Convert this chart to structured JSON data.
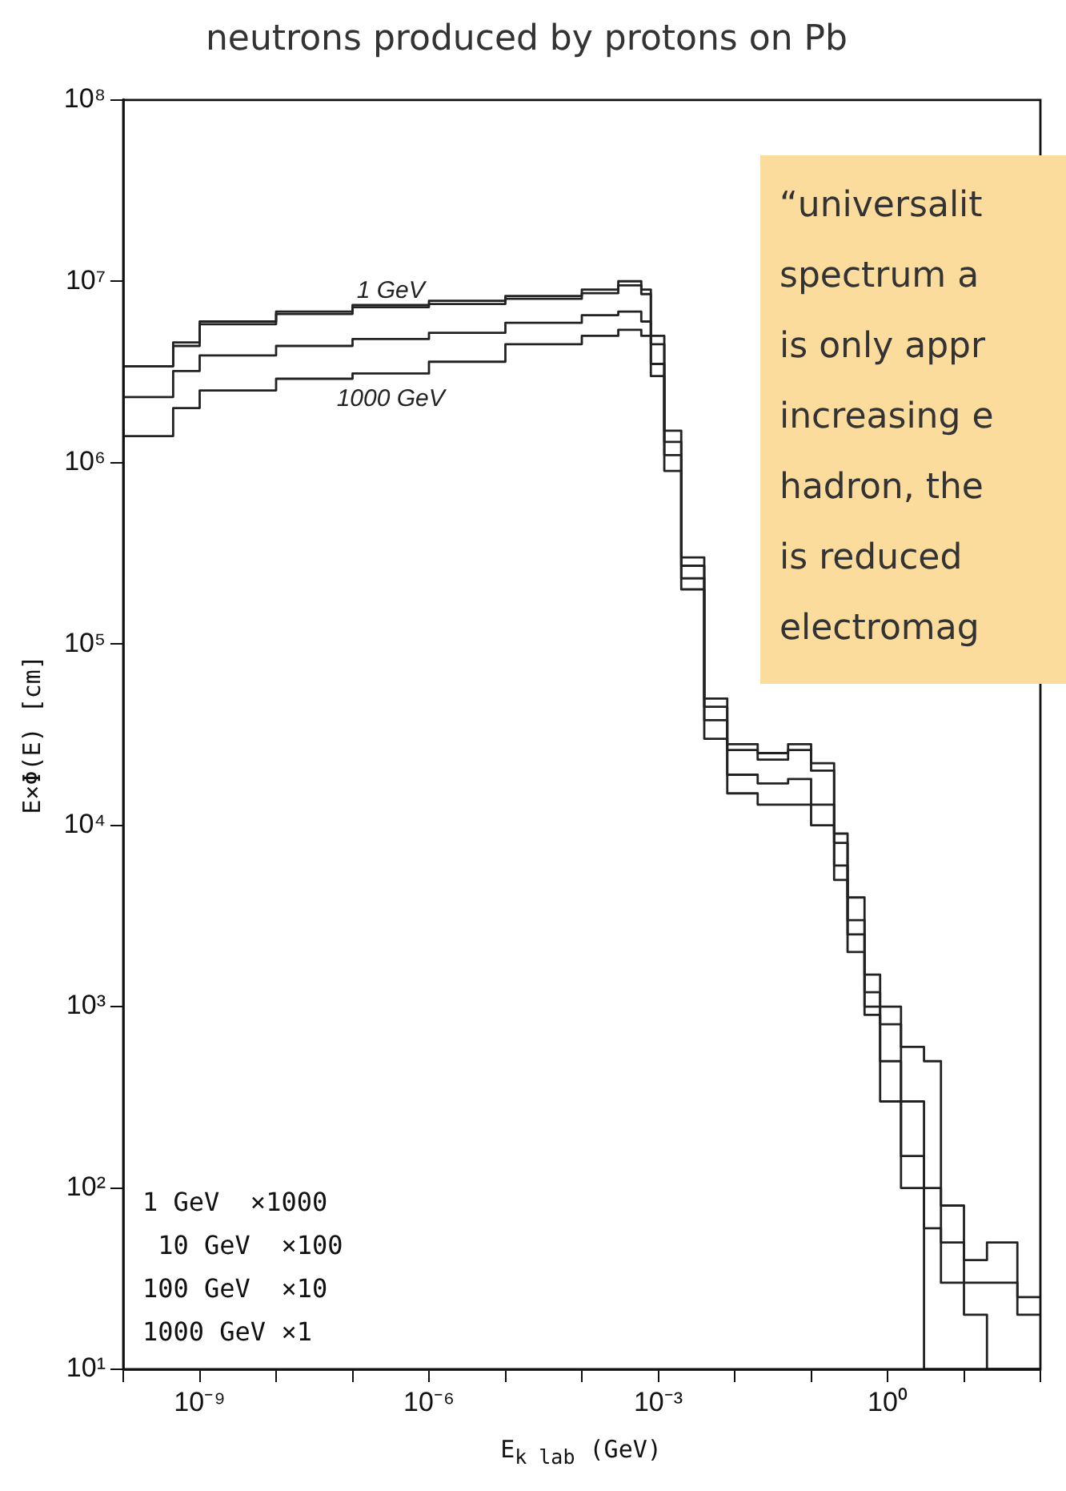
{
  "chart_data": {
    "type": "step",
    "title": "neutrons produced by protons on Pb",
    "xlabel": "E$_{k lab}$ (GeV)",
    "ylabel": "E×Φ(E) [cm]",
    "log": "xy",
    "marker": "none",
    "xlim": [
      1e-10,
      100
    ],
    "xticks": [
      {
        "value": 1e-10,
        "label": null
      },
      {
        "value": 1e-09,
        "label": "10⁻⁹"
      },
      {
        "value": 1e-08,
        "label": null
      },
      {
        "value": 1e-07,
        "label": null
      },
      {
        "value": 1e-06,
        "label": "10⁻⁶"
      },
      {
        "value": 1e-05,
        "label": null
      },
      {
        "value": 0.0001,
        "label": null
      },
      {
        "value": 0.001,
        "label": "10⁻³"
      },
      {
        "value": 0.01,
        "label": null
      },
      {
        "value": 0.1,
        "label": null
      },
      {
        "value": 1,
        "label": "10⁰"
      },
      {
        "value": 10,
        "label": null
      },
      {
        "value": 100,
        "label": null
      }
    ],
    "ylim": [
      10,
      100000000
    ],
    "yticks": [
      {
        "value": 10,
        "label": "10¹"
      },
      {
        "value": 100,
        "label": "10²"
      },
      {
        "value": 1000,
        "label": "10³"
      },
      {
        "value": 10000,
        "label": "10⁴"
      },
      {
        "value": 100000,
        "label": "10⁵"
      },
      {
        "value": 1000000,
        "label": "10⁶"
      },
      {
        "value": 10000000,
        "label": "10⁷"
      },
      {
        "value": 100000000,
        "label": "10⁸"
      }
    ],
    "x": [
      1e-10,
      4.5e-10,
      1e-09,
      1e-08,
      1e-07,
      1e-06,
      1e-05,
      0.0001,
      0.0003,
      0.0006,
      0.0008,
      0.0012,
      0.002,
      0.004,
      0.008,
      0.02,
      0.05,
      0.1,
      0.2,
      0.3,
      0.5,
      0.8,
      1.5,
      3,
      5,
      10,
      20,
      50,
      100
    ],
    "series": [
      {
        "name": "1 GeV",
        "color": "#222222",
        "values": [
          330000,
          3400000,
          4600000,
          6000000,
          6800000,
          7400000,
          7800000,
          8300000,
          9000000,
          10000000,
          9000000,
          5000000,
          1500000,
          300000,
          50000,
          28000,
          25000,
          28000,
          22000,
          9000,
          4000,
          1500,
          1000,
          600,
          500,
          80,
          40,
          50,
          25
        ]
      },
      {
        "color": "#222222",
        "values": [
          320000,
          3400000,
          4400000,
          5800000,
          6600000,
          7200000,
          7500000,
          8000000,
          8600000,
          9500000,
          8500000,
          4500000,
          1300000,
          270000,
          45000,
          26000,
          23000,
          26000,
          20000,
          8000,
          3000,
          1200,
          800,
          300,
          100,
          50,
          30,
          30,
          20
        ]
      },
      {
        "color": "#222222",
        "values": [
          220000,
          2300000,
          3200000,
          3900000,
          4400000,
          4800000,
          5200000,
          5900000,
          6500000,
          6800000,
          6000000,
          3500000,
          1100000,
          230000,
          38000,
          19000,
          17000,
          18000,
          13000,
          6000,
          2500,
          1000,
          500,
          150,
          60,
          30,
          20,
          10,
          10
        ]
      },
      {
        "name": "1000 GeV",
        "color": "#222222",
        "values": [
          135000,
          1400000,
          2000000,
          2500000,
          2900000,
          3100000,
          3600000,
          4500000,
          5000000,
          5400000,
          5000000,
          3000000,
          900000,
          200000,
          30000,
          15000,
          13000,
          13000,
          10000,
          5000,
          2000,
          900,
          300,
          100,
          10,
          10,
          10,
          10,
          10
        ]
      }
    ],
    "annotations": [
      "1 GeV  ×1000\n 10 GeV  ×100\n100 GeV  ×10\n1000 GeV ×1",
      "“universalit\nspectrum a\nis only appr\nincreasing e\nhadron, the\nis reduced\nelectromag"
    ]
  }
}
